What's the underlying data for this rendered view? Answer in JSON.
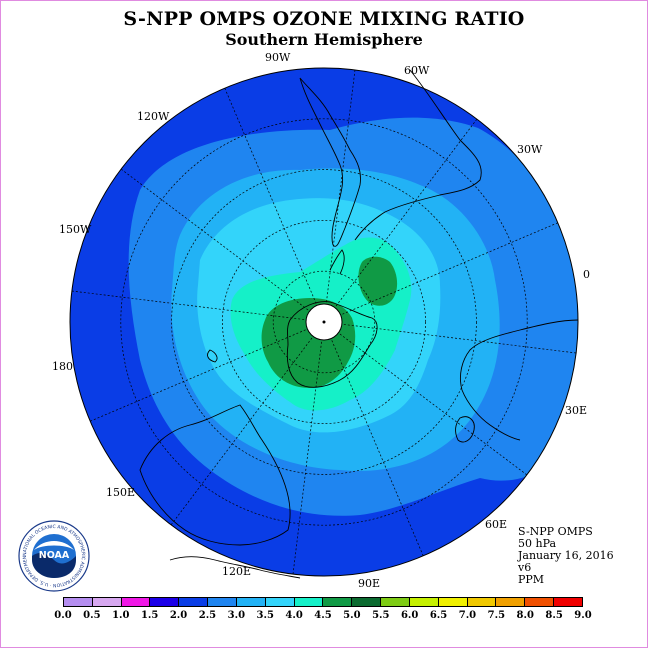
{
  "title": "S-NPP OMPS OZONE MIXING RATIO",
  "subtitle": "Southern Hemisphere",
  "longitude_labels": [
    {
      "id": "lon-90w",
      "text": "90W"
    },
    {
      "id": "lon-60w",
      "text": "60W"
    },
    {
      "id": "lon-30w",
      "text": "30W"
    },
    {
      "id": "lon-0",
      "text": "0"
    },
    {
      "id": "lon-30e",
      "text": "30E"
    },
    {
      "id": "lon-60e",
      "text": "60E"
    },
    {
      "id": "lon-90e",
      "text": "90E"
    },
    {
      "id": "lon-120e",
      "text": "120E"
    },
    {
      "id": "lon-150e",
      "text": "150E"
    },
    {
      "id": "lon-180",
      "text": "180"
    },
    {
      "id": "lon-150w",
      "text": "150W"
    },
    {
      "id": "lon-120w",
      "text": "120W"
    }
  ],
  "info": {
    "instrument": "S-NPP OMPS",
    "level": "50 hPa",
    "date": "January 16, 2016",
    "version": "v6",
    "units": "PPM"
  },
  "logo": {
    "text": "NOAA",
    "ring_text": "NATIONAL OCEANIC AND ATMOSPHERIC ADMINISTRATION · U.S. DEPARTMENT OF COMMERCE"
  },
  "legend": {
    "ticks": [
      "0.0",
      "0.5",
      "1.0",
      "1.5",
      "2.0",
      "2.5",
      "3.0",
      "3.5",
      "4.0",
      "4.5",
      "5.0",
      "5.5",
      "6.0",
      "6.5",
      "7.0",
      "7.5",
      "8.0",
      "8.5",
      "9.0"
    ],
    "colors": [
      "#b58ef0",
      "#d7a8f0",
      "#f018e6",
      "#1c00e8",
      "#0a3de6",
      "#1f85f0",
      "#22b2f5",
      "#33d4fa",
      "#15f0c8",
      "#109a45",
      "#0b6b30",
      "#7ecc14",
      "#c5f000",
      "#f0f000",
      "#f0c800",
      "#f0a000",
      "#f05000",
      "#f00000",
      "#8c5a3c"
    ]
  },
  "map_colors": {
    "band_2_0": "#0a3de6",
    "band_2_5": "#1f85f0",
    "band_3_0": "#22b2f5",
    "band_3_5": "#33d4fa",
    "band_4_0": "#15f0c8",
    "band_4_5": "#109a45",
    "pole_mask": "#ffffff"
  }
}
